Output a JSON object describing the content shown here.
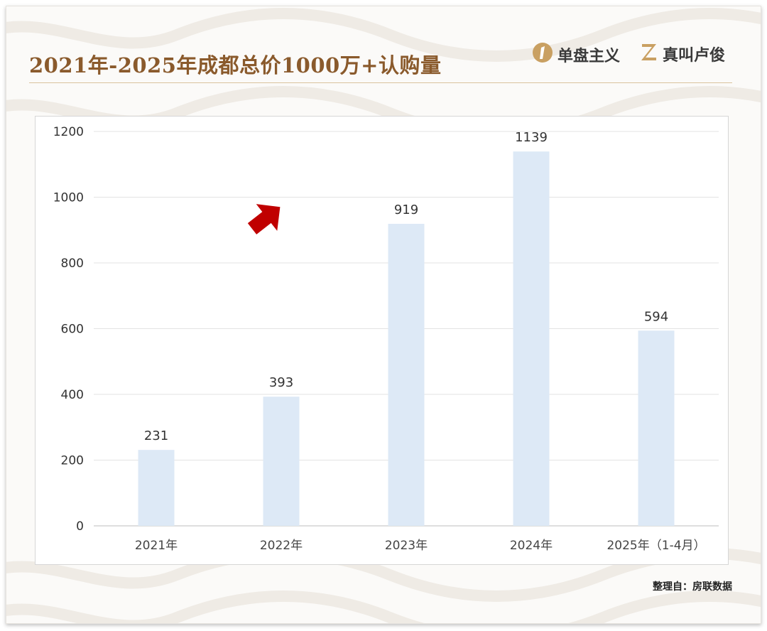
{
  "header": {
    "title": "2021年-2025年成都总价1000万+认购量",
    "brand_a_label": "单盘主义",
    "brand_b_label": "真叫卢俊",
    "brand_a_icon": "number-one-badge-icon",
    "brand_b_icon": "letter-z-logo-icon"
  },
  "footer": {
    "source": "整理自：房联数据"
  },
  "colors": {
    "bar": "#dde9f6",
    "title": "#8a5a2c",
    "arrow": "#c00000",
    "gold": "#c9a062"
  },
  "chart_data": {
    "type": "bar",
    "title": "",
    "xlabel": "",
    "ylabel": "",
    "categories": [
      "2021年",
      "2022年",
      "2023年",
      "2024年",
      "2025年（1-4月）"
    ],
    "values": [
      231,
      393,
      919,
      1139,
      594
    ],
    "data_labels": [
      "231",
      "393",
      "919",
      "1139",
      "594"
    ],
    "ylim": [
      0,
      1200
    ],
    "yticks": [
      0,
      200,
      400,
      600,
      800,
      1000,
      1200
    ],
    "ytick_labels": [
      "0",
      "200",
      "400",
      "600",
      "800",
      "1000",
      "1200"
    ],
    "grid": true,
    "legend": "none",
    "annotation_icon": "red-up-right-arrow-icon"
  }
}
